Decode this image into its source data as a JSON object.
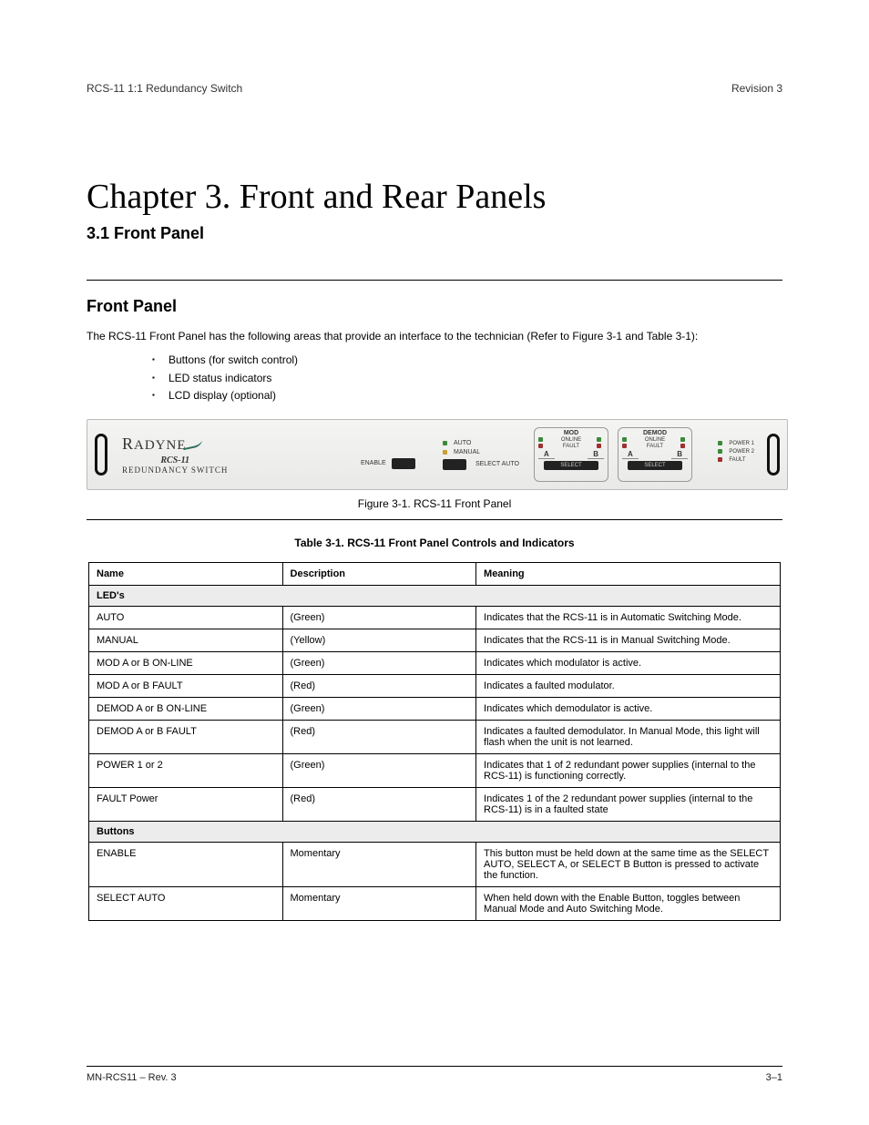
{
  "header": {
    "left": "RCS-11 1:1 Redundancy Switch",
    "right": "Revision 3"
  },
  "title": "Chapter 3. Front and Rear Panels",
  "subtitle": "3.1 Front Panel",
  "intro": "The RCS-11 Front Panel has the following areas that provide an interface to the technician (Refer to Figure 3-1 and Table 3-1):",
  "bullets": [
    "Buttons (for switch control)",
    "LED status indicators",
    "LCD display (optional)"
  ],
  "device": {
    "brand": "RADYNE",
    "model": "RCS-11",
    "sub": "REDUNDANCY  SWITCH",
    "enable": "ENABLE",
    "auto": "AUTO",
    "manual": "MANUAL",
    "select_auto": "SELECT AUTO",
    "mod_title": "MOD",
    "demod_title": "DEMOD",
    "online": "ONLINE",
    "fault": "FAULT",
    "a": "A",
    "b": "B",
    "power1": "POWER 1",
    "power2": "POWER 2",
    "pfault": "FAULT"
  },
  "figure_caption": "Figure 3-1.  RCS-11 Front Panel",
  "table_caption": "Table 3-1.  RCS-11 Front Panel Controls and Indicators",
  "table": {
    "section1": "LED's",
    "headers": [
      "Name",
      "Description",
      "Meaning"
    ],
    "rows1": [
      [
        "AUTO",
        "(Green)",
        "Indicates that the RCS-11 is in Automatic Switching Mode."
      ],
      [
        "MANUAL",
        "(Yellow)",
        "Indicates that the RCS-11 is in Manual Switching Mode."
      ],
      [
        "MOD A or B ON-LINE",
        "(Green)",
        "Indicates which modulator is active."
      ],
      [
        "MOD A or B FAULT",
        "(Red)",
        "Indicates a faulted modulator."
      ],
      [
        "DEMOD A or B ON-LINE",
        "(Green)",
        "Indicates which demodulator is active."
      ],
      [
        "DEMOD A or B FAULT",
        "(Red)",
        "Indicates a faulted demodulator.  In Manual Mode, this light will flash when the unit is not learned."
      ],
      [
        "POWER 1 or 2",
        "(Green)",
        "Indicates that 1 of 2 redundant power supplies (internal to the RCS-11) is functioning correctly."
      ],
      [
        "FAULT Power",
        "(Red)",
        "Indicates 1 of the 2 redundant power supplies (internal to the RCS-11) is in a faulted state"
      ]
    ],
    "section2": "Buttons",
    "rows2": [
      [
        "ENABLE",
        "Momentary",
        "This button must be held down at the same time as the SELECT AUTO, SELECT A, or SELECT B Button is pressed to activate the function."
      ],
      [
        "SELECT AUTO",
        "Momentary",
        "When held down with the Enable Button, toggles between Manual Mode and Auto Switching Mode."
      ]
    ]
  },
  "footer": {
    "left": "MN-RCS11 – Rev. 3",
    "right": "3–1"
  }
}
